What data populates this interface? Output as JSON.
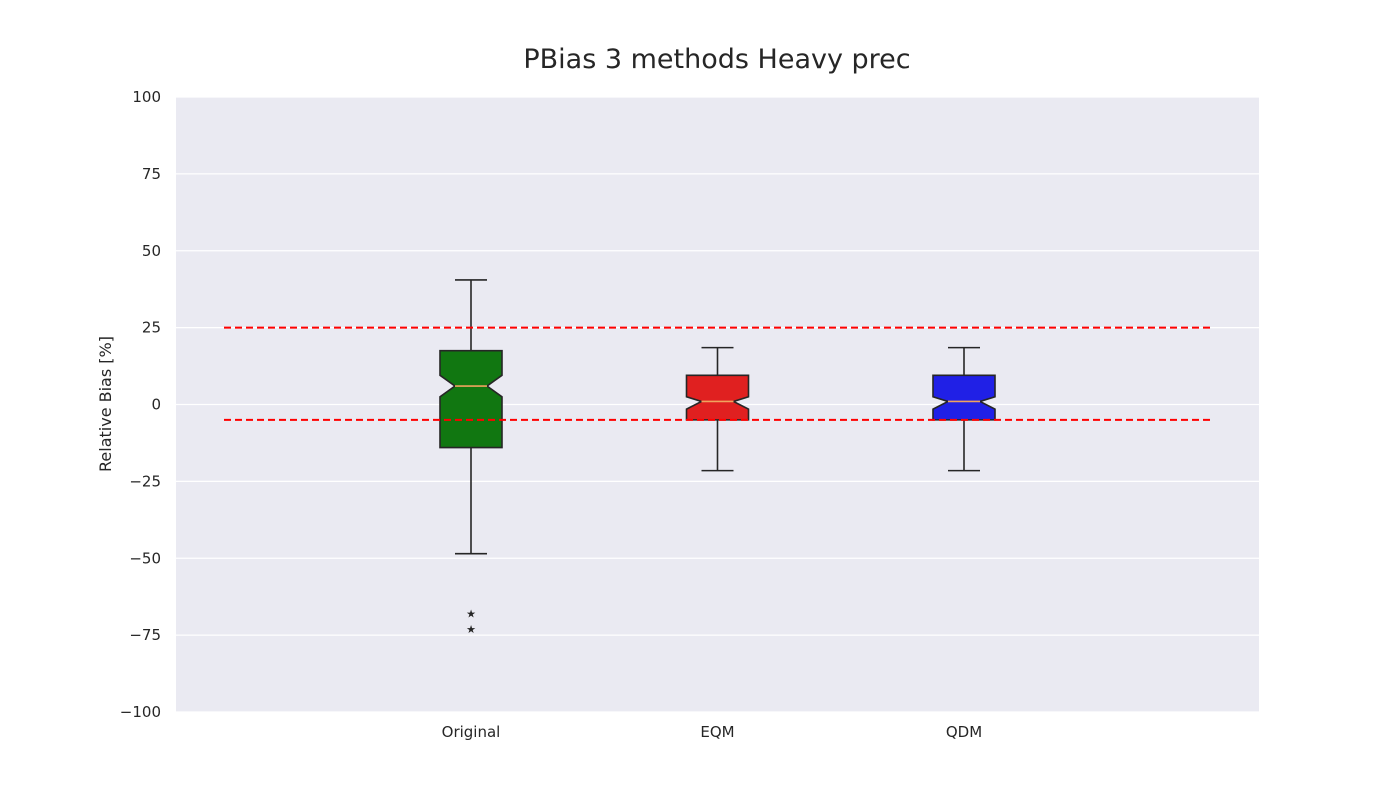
{
  "chart_data": {
    "type": "box",
    "title": "PBias 3 methods Heavy prec",
    "xlabel": "",
    "ylabel": "Relative Bias [%]",
    "ylim": [
      -100,
      100
    ],
    "y_ticks": [
      100,
      75,
      50,
      25,
      0,
      -25,
      -50,
      -75,
      -100
    ],
    "y_tick_labels": [
      "100",
      "75",
      "50",
      "25",
      "0",
      "−25",
      "−50",
      "−75",
      "−100"
    ],
    "grid": true,
    "notched": true,
    "background_color": "#eaeaf2",
    "median_color": "#f0a35e",
    "outlier_marker": "star",
    "categories": [
      "Original",
      "EQM",
      "QDM"
    ],
    "boxes": [
      {
        "label": "Original",
        "color": "#117711",
        "whisker_low": -48.5,
        "q1": -14,
        "median": 6,
        "q3": 17.5,
        "whisker_high": 40.5,
        "notch_low": 2.5,
        "notch_high": 9.5,
        "outliers": [
          -68,
          -73
        ]
      },
      {
        "label": "EQM",
        "color": "#e02020",
        "whisker_low": -21.5,
        "q1": -5,
        "median": 1,
        "q3": 9.5,
        "whisker_high": 18.5,
        "notch_low": -1.5,
        "notch_high": 2.5,
        "outliers": []
      },
      {
        "label": "QDM",
        "color": "#2020e6",
        "whisker_low": -21.5,
        "q1": -5,
        "median": 1,
        "q3": 9.5,
        "whisker_high": 18.5,
        "notch_low": -1.5,
        "notch_high": 2.5,
        "outliers": []
      }
    ],
    "reference_lines": [
      {
        "y": 25,
        "color": "#ff0000",
        "style": "dashed"
      },
      {
        "y": -5,
        "color": "#ff0000",
        "style": "dashed"
      }
    ]
  }
}
